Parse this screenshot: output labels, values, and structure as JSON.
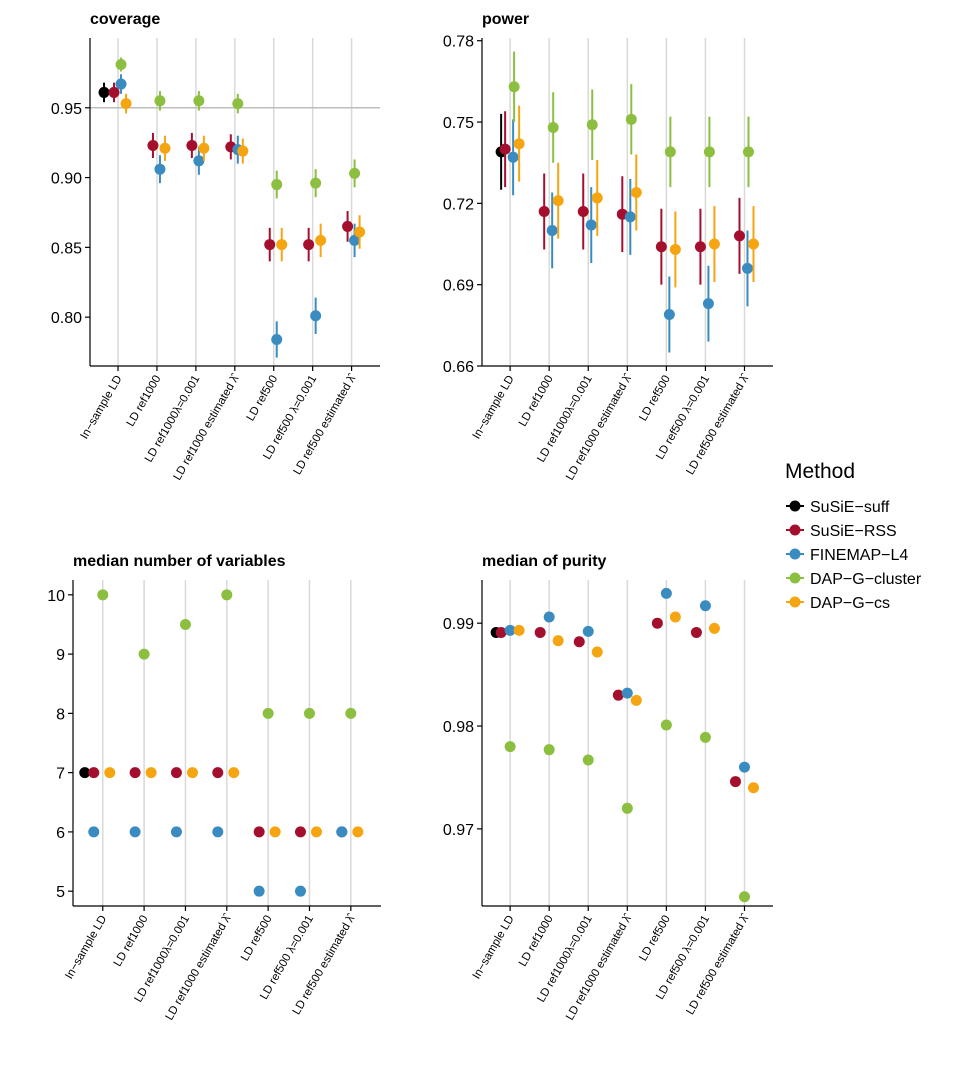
{
  "colors": {
    "SuSiE-suff": "#000000",
    "SuSiE-RSS": "#A50F2E",
    "FINEMAP-L4": "#3A8CC0",
    "DAP-G-cluster": "#8CBF3F",
    "DAP-G-cs": "#F6A512",
    "gridline": "#d9d9d9",
    "refline": "#bdbdbd"
  },
  "legend": {
    "title": "Method",
    "placement": "right",
    "items": [
      "SuSiE−suff",
      "SuSiE−RSS",
      "FINEMAP−L4",
      "DAP−G−cluster",
      "DAP−G−cs"
    ]
  },
  "chart_data": [
    {
      "type": "scatter",
      "title": "coverage",
      "categories": [
        "In−sample LD",
        "LD ref1000",
        "LD ref1000λ=0.001",
        "LD ref1000 estimated λ̂",
        "LD ref500",
        "LD ref500 λ=0.001",
        "LD ref500 estimated λ̂"
      ],
      "ylim": [
        0.765,
        1.0
      ],
      "yticks": [
        0.8,
        0.85,
        0.9,
        0.95
      ],
      "tick_labels": [
        "0.80",
        "0.85",
        "0.90",
        "0.95"
      ],
      "hline": 0.95,
      "series": [
        {
          "name": "SuSiE−suff",
          "values": [
            0.961,
            null,
            null,
            null,
            null,
            null,
            null
          ],
          "lower": [
            0.954,
            null,
            null,
            null,
            null,
            null,
            null
          ],
          "upper": [
            0.968,
            null,
            null,
            null,
            null,
            null,
            null
          ]
        },
        {
          "name": "SuSiE−RSS",
          "values": [
            0.961,
            0.923,
            0.923,
            0.922,
            0.852,
            0.852,
            0.865
          ],
          "lower": [
            0.954,
            0.914,
            0.914,
            0.913,
            0.84,
            0.84,
            0.854
          ],
          "upper": [
            0.968,
            0.932,
            0.932,
            0.931,
            0.864,
            0.864,
            0.876
          ]
        },
        {
          "name": "FINEMAP−L4",
          "values": [
            0.967,
            0.906,
            0.912,
            0.92,
            0.784,
            0.801,
            0.855
          ],
          "lower": [
            0.96,
            0.896,
            0.902,
            0.91,
            0.771,
            0.788,
            0.843
          ],
          "upper": [
            0.974,
            0.916,
            0.922,
            0.93,
            0.797,
            0.814,
            0.867
          ]
        },
        {
          "name": "DAP−G−cluster",
          "values": [
            0.981,
            0.955,
            0.955,
            0.953,
            0.895,
            0.896,
            0.903
          ],
          "lower": [
            0.976,
            0.948,
            0.948,
            0.946,
            0.885,
            0.886,
            0.893
          ],
          "upper": [
            0.986,
            0.962,
            0.962,
            0.96,
            0.905,
            0.906,
            0.913
          ]
        },
        {
          "name": "DAP−G−cs",
          "values": [
            0.953,
            0.921,
            0.921,
            0.919,
            0.852,
            0.855,
            0.861
          ],
          "lower": [
            0.946,
            0.912,
            0.912,
            0.91,
            0.84,
            0.843,
            0.849
          ],
          "upper": [
            0.96,
            0.93,
            0.93,
            0.928,
            0.864,
            0.867,
            0.873
          ]
        }
      ]
    },
    {
      "type": "scatter",
      "title": "power",
      "categories": [
        "In−sample LD",
        "LD ref1000",
        "LD ref1000λ=0.001",
        "LD ref1000 estimated λ̂",
        "LD ref500",
        "LD ref500 λ=0.001",
        "LD ref500 estimated λ̂"
      ],
      "ylim": [
        0.66,
        0.781
      ],
      "yticks": [
        0.66,
        0.69,
        0.72,
        0.75,
        0.78
      ],
      "tick_labels": [
        "0.66",
        "0.69",
        "0.72",
        "0.75",
        "0.78"
      ],
      "series": [
        {
          "name": "SuSiE−suff",
          "values": [
            0.739,
            null,
            null,
            null,
            null,
            null,
            null
          ],
          "lower": [
            0.725,
            null,
            null,
            null,
            null,
            null,
            null
          ],
          "upper": [
            0.753,
            null,
            null,
            null,
            null,
            null,
            null
          ]
        },
        {
          "name": "SuSiE−RSS",
          "values": [
            0.74,
            0.717,
            0.717,
            0.716,
            0.704,
            0.704,
            0.708
          ],
          "lower": [
            0.726,
            0.703,
            0.703,
            0.702,
            0.69,
            0.69,
            0.694
          ],
          "upper": [
            0.754,
            0.731,
            0.731,
            0.73,
            0.718,
            0.718,
            0.722
          ]
        },
        {
          "name": "FINEMAP−L4",
          "values": [
            0.737,
            0.71,
            0.712,
            0.715,
            0.679,
            0.683,
            0.696
          ],
          "lower": [
            0.723,
            0.696,
            0.698,
            0.701,
            0.665,
            0.669,
            0.682
          ],
          "upper": [
            0.751,
            0.724,
            0.726,
            0.729,
            0.693,
            0.697,
            0.71
          ]
        },
        {
          "name": "DAP−G−cluster",
          "values": [
            0.763,
            0.748,
            0.749,
            0.751,
            0.739,
            0.739,
            0.739
          ],
          "lower": [
            0.75,
            0.735,
            0.736,
            0.738,
            0.726,
            0.726,
            0.726
          ],
          "upper": [
            0.776,
            0.761,
            0.762,
            0.764,
            0.752,
            0.752,
            0.752
          ]
        },
        {
          "name": "DAP−G−cs",
          "values": [
            0.742,
            0.721,
            0.722,
            0.724,
            0.703,
            0.705,
            0.705
          ],
          "lower": [
            0.728,
            0.707,
            0.708,
            0.71,
            0.689,
            0.691,
            0.691
          ],
          "upper": [
            0.756,
            0.735,
            0.736,
            0.738,
            0.717,
            0.719,
            0.719
          ]
        }
      ]
    },
    {
      "type": "scatter",
      "title": "median number of variables",
      "categories": [
        "In−sample LD",
        "LD ref1000",
        "LD ref1000λ=0.001",
        "LD ref1000 estimated λ̂",
        "LD ref500",
        "LD ref500 λ=0.001",
        "LD ref500 estimated λ̂"
      ],
      "ylim": [
        4.75,
        10.25
      ],
      "yticks": [
        5,
        6,
        7,
        8,
        9,
        10
      ],
      "tick_labels": [
        "5",
        "6",
        "7",
        "8",
        "9",
        "10"
      ],
      "series": [
        {
          "name": "SuSiE−suff",
          "values": [
            7,
            null,
            null,
            null,
            null,
            null,
            null
          ]
        },
        {
          "name": "SuSiE−RSS",
          "values": [
            7,
            7,
            7,
            7,
            6,
            6,
            6
          ]
        },
        {
          "name": "FINEMAP−L4",
          "values": [
            6,
            6,
            6,
            6,
            5,
            5,
            6
          ]
        },
        {
          "name": "DAP−G−cluster",
          "values": [
            10,
            9,
            9.5,
            10,
            8,
            8,
            8
          ]
        },
        {
          "name": "DAP−G−cs",
          "values": [
            7,
            7,
            7,
            7,
            6,
            6,
            6
          ]
        }
      ]
    },
    {
      "type": "scatter",
      "title": "median of purity",
      "categories": [
        "In−sample LD",
        "LD ref1000",
        "LD ref1000λ=0.001",
        "LD ref1000 estimated λ̂",
        "LD ref500",
        "LD ref500 λ=0.001",
        "LD ref500 estimated λ̂"
      ],
      "ylim": [
        0.9625,
        0.9942
      ],
      "yticks": [
        0.97,
        0.98,
        0.99
      ],
      "tick_labels": [
        "0.97",
        "0.98",
        "0.99"
      ],
      "series": [
        {
          "name": "SuSiE−suff",
          "values": [
            0.9891,
            null,
            null,
            null,
            null,
            null,
            null
          ]
        },
        {
          "name": "SuSiE−RSS",
          "values": [
            0.9891,
            0.9891,
            0.9882,
            0.983,
            0.99,
            0.9891,
            0.9746
          ]
        },
        {
          "name": "FINEMAP−L4",
          "values": [
            0.9893,
            0.9906,
            0.9892,
            0.9832,
            0.9929,
            0.9917,
            0.976
          ]
        },
        {
          "name": "DAP−G−cluster",
          "values": [
            0.978,
            0.9777,
            0.9767,
            0.972,
            0.9801,
            0.9789,
            0.9634
          ]
        },
        {
          "name": "DAP−G−cs",
          "values": [
            0.9893,
            0.9883,
            0.9872,
            0.9825,
            0.9906,
            0.9895,
            0.974
          ]
        }
      ]
    }
  ]
}
